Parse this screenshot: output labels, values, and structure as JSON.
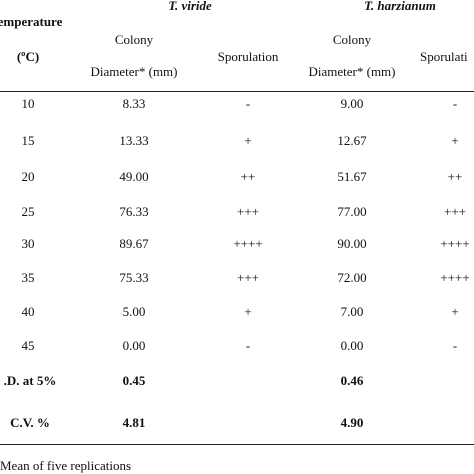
{
  "table": {
    "header": {
      "temperature": "emperature",
      "group1": "T. viride",
      "group2": "T. harzianum"
    },
    "subheader": {
      "unit": "(ºC)",
      "colony1_line1": "Colony",
      "colony1_line2": "Diameter* (mm)",
      "sporulation1": "Sporulation",
      "colony2_line1": "Colony",
      "colony2_line2": "Diameter* (mm)",
      "sporulation2": "Sporulati"
    },
    "rows": [
      [
        "10",
        "8.33",
        "-",
        "9.00",
        "-"
      ],
      [
        "15",
        "13.33",
        "+",
        "12.67",
        "+"
      ],
      [
        "20",
        "49.00",
        "++",
        "51.67",
        "++"
      ],
      [
        "25",
        "76.33",
        "+++",
        "77.00",
        "+++"
      ],
      [
        "30",
        "89.67",
        "++++",
        "90.00",
        "++++"
      ],
      [
        "35",
        "75.33",
        "+++",
        "72.00",
        "++++"
      ],
      [
        "40",
        "5.00",
        "+",
        "7.00",
        "+"
      ],
      [
        "45",
        "0.00",
        "-",
        "0.00",
        "-"
      ]
    ],
    "cd_row": [
      ".D. at 5%",
      "0.45",
      "0.46"
    ],
    "cv_row": [
      "C.V. %",
      "4.81",
      "4.90"
    ],
    "footnote": "Mean of five replications"
  }
}
